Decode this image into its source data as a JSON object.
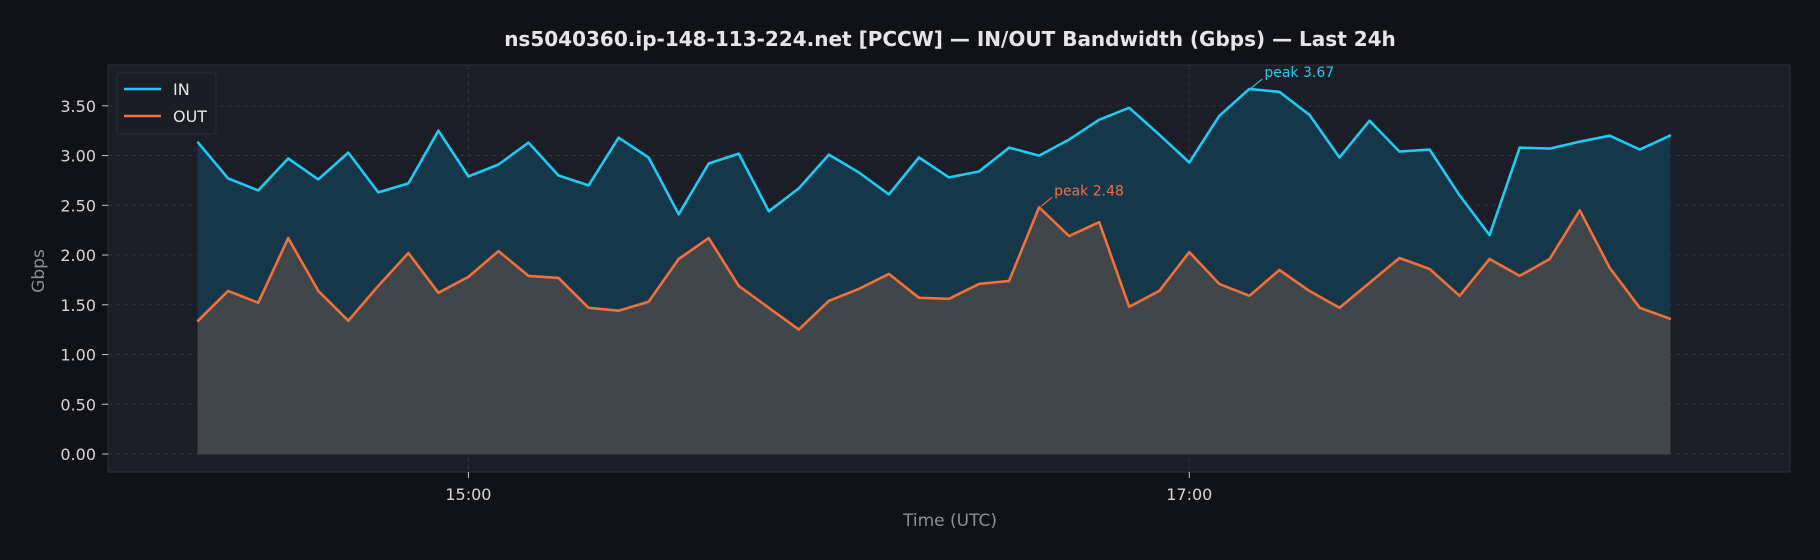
{
  "chart_data": {
    "type": "area",
    "title": "ns5040360.ip-148-113-224.net [PCCW] — IN/OUT Bandwidth (Gbps) — Last 24h",
    "xlabel": "Time (UTC)",
    "ylabel": "Gbps",
    "ylim": [
      0,
      3.85
    ],
    "yticks": [
      "0.00",
      "0.50",
      "1.00",
      "1.50",
      "2.00",
      "2.50",
      "3.00",
      "3.50"
    ],
    "xlim": [
      "14:00",
      "18:40"
    ],
    "xticks": [
      {
        "label": "15:00",
        "time": "15:00"
      },
      {
        "label": "17:00",
        "time": "17:00"
      }
    ],
    "x": [
      "14:15",
      "14:20",
      "14:25",
      "14:30",
      "14:35",
      "14:40",
      "14:45",
      "14:50",
      "14:55",
      "15:00",
      "15:05",
      "15:10",
      "15:15",
      "15:20",
      "15:25",
      "15:30",
      "15:35",
      "15:40",
      "15:45",
      "15:50",
      "15:55",
      "16:00",
      "16:05",
      "16:10",
      "16:15",
      "16:20",
      "16:25",
      "16:30",
      "16:35",
      "16:40",
      "16:45",
      "16:50",
      "16:55",
      "17:00",
      "17:05",
      "17:10",
      "17:15",
      "17:20",
      "17:25",
      "17:30",
      "17:35",
      "17:40",
      "17:45",
      "17:50",
      "17:55",
      "18:00",
      "18:05",
      "18:10",
      "18:15",
      "18:20",
      "18:25"
    ],
    "series": [
      {
        "name": "IN",
        "color": "#1ecbf2",
        "fill": "#15394b",
        "values": [
          3.13,
          2.77,
          2.65,
          2.97,
          2.76,
          3.03,
          2.63,
          2.72,
          3.25,
          2.79,
          2.91,
          3.13,
          2.8,
          2.7,
          3.18,
          2.98,
          2.41,
          2.92,
          3.02,
          2.44,
          2.67,
          3.01,
          2.83,
          2.61,
          2.98,
          2.78,
          2.84,
          3.08,
          3.0,
          3.16,
          3.36,
          3.48,
          3.21,
          2.93,
          3.4,
          3.67,
          3.64,
          3.41,
          2.98,
          3.35,
          3.04,
          3.06,
          2.6,
          2.2,
          3.08,
          3.07,
          3.14,
          3.2,
          3.06,
          3.2,
          null
        ]
      },
      {
        "name": "OUT",
        "color": "#f2703a",
        "fill": "#43474b",
        "values": [
          1.34,
          1.64,
          1.52,
          2.17,
          1.64,
          1.34,
          1.69,
          2.02,
          1.62,
          1.78,
          2.04,
          1.79,
          1.77,
          1.47,
          1.44,
          1.53,
          1.96,
          2.17,
          1.69,
          1.47,
          1.25,
          1.54,
          1.66,
          1.81,
          1.57,
          1.56,
          1.71,
          1.74,
          2.48,
          2.19,
          2.33,
          1.48,
          1.64,
          2.03,
          1.71,
          1.59,
          1.85,
          1.64,
          1.47,
          1.72,
          1.97,
          1.86,
          1.59,
          1.96,
          1.79,
          1.96,
          2.45,
          1.87,
          1.47,
          1.36,
          null
        ]
      }
    ],
    "annotations": [
      {
        "text": "peak 3.67",
        "series": "IN",
        "x": "17:10",
        "y": 3.67,
        "color": "#1ecbf2"
      },
      {
        "text": "peak 2.48",
        "series": "OUT",
        "x": "16:35",
        "y": 2.48,
        "color": "#f2703a"
      }
    ],
    "legend": {
      "position": "top-left",
      "items": [
        "IN",
        "OUT"
      ]
    },
    "grid": true
  },
  "colors": {
    "figure_bg": "#101217",
    "axes_bg": "#1b1d27",
    "grid": "#3a3d47",
    "text": "#e6e6e6",
    "muted": "#8c8f96"
  }
}
